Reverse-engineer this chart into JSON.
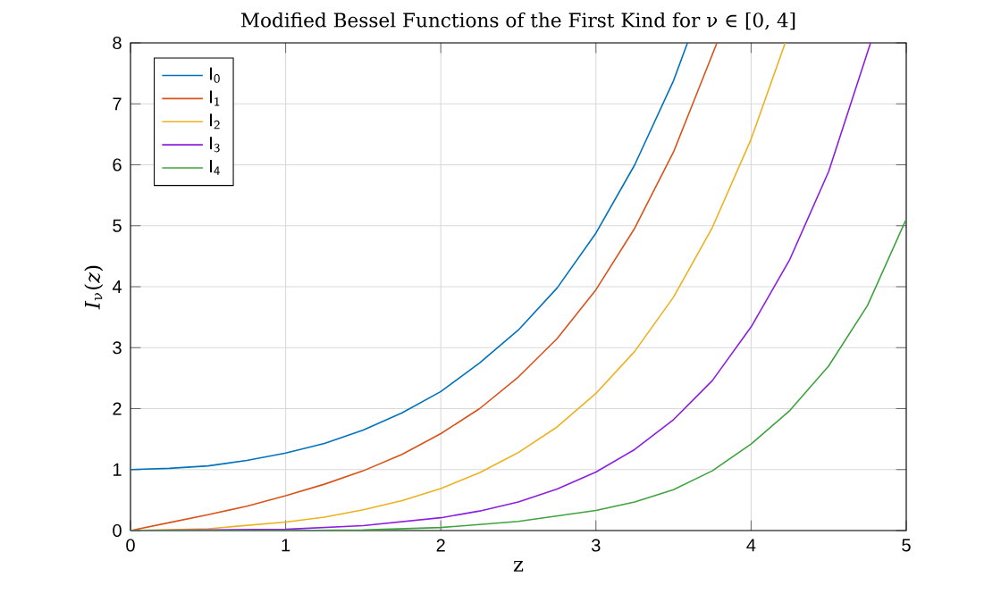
{
  "chart_data": {
    "type": "line",
    "title": "Modified Bessel Functions of the First Kind for ν ∈ [0, 4]",
    "xlabel": "z",
    "ylabel": "*I*$_{ν}$(*z*)",
    "xlim": [
      0,
      5
    ],
    "ylim": [
      0,
      8
    ],
    "xticks": [
      0,
      1,
      2,
      3,
      4,
      5
    ],
    "yticks": [
      0,
      1,
      2,
      3,
      4,
      5,
      6,
      7,
      8
    ],
    "grid": true,
    "legend": "top left",
    "line_style": "solid",
    "series": [
      {
        "name": "I$_{0}$",
        "color": "#0072bd",
        "x": [
          0,
          0.25,
          0.5,
          0.75,
          1,
          1.25,
          1.5,
          1.75,
          2,
          2.25,
          2.5,
          2.75,
          3,
          3.25,
          3.5,
          3.59
        ],
        "values": [
          1.0,
          1.02,
          1.06,
          1.15,
          1.27,
          1.43,
          1.65,
          1.93,
          2.28,
          2.75,
          3.29,
          3.98,
          4.88,
          6.0,
          7.38,
          8
        ]
      },
      {
        "name": "I$_{1}$",
        "color": "#d95319",
        "x": [
          0,
          0.25,
          0.5,
          0.75,
          1,
          1.25,
          1.5,
          1.75,
          2,
          2.25,
          2.5,
          2.75,
          3,
          3.25,
          3.5,
          3.78
        ],
        "values": [
          0,
          0.13,
          0.26,
          0.4,
          0.57,
          0.76,
          0.98,
          1.25,
          1.59,
          2.0,
          2.52,
          3.15,
          3.95,
          4.96,
          6.21,
          8
        ]
      },
      {
        "name": "I$_{2}$",
        "color": "#edb120",
        "x": [
          0,
          0.5,
          1,
          1.25,
          1.5,
          1.75,
          2,
          2.25,
          2.5,
          2.75,
          3,
          3.25,
          3.5,
          3.75,
          4,
          4.22
        ],
        "values": [
          0,
          0.03,
          0.14,
          0.22,
          0.34,
          0.49,
          0.69,
          0.95,
          1.28,
          1.7,
          2.25,
          2.94,
          3.83,
          4.97,
          6.42,
          8
        ]
      },
      {
        "name": "I$_{3}$",
        "color": "#8b1ee0",
        "x": [
          0,
          1,
          1.5,
          2,
          2.25,
          2.5,
          2.75,
          3,
          3.25,
          3.5,
          3.75,
          4,
          4.25,
          4.5,
          4.77
        ],
        "values": [
          0,
          0.02,
          0.08,
          0.21,
          0.32,
          0.47,
          0.68,
          0.96,
          1.33,
          1.82,
          2.46,
          3.34,
          4.45,
          5.89,
          8
        ]
      },
      {
        "name": "I$_{4}$",
        "color": "#3ea33e",
        "x": [
          0,
          1,
          1.5,
          2,
          2.5,
          3,
          3.25,
          3.5,
          3.75,
          4,
          4.25,
          4.5,
          4.75,
          5
        ],
        "values": [
          0,
          0.0,
          0.01,
          0.05,
          0.15,
          0.33,
          0.47,
          0.67,
          0.98,
          1.42,
          1.97,
          2.7,
          3.69,
          5.11
        ]
      }
    ]
  }
}
